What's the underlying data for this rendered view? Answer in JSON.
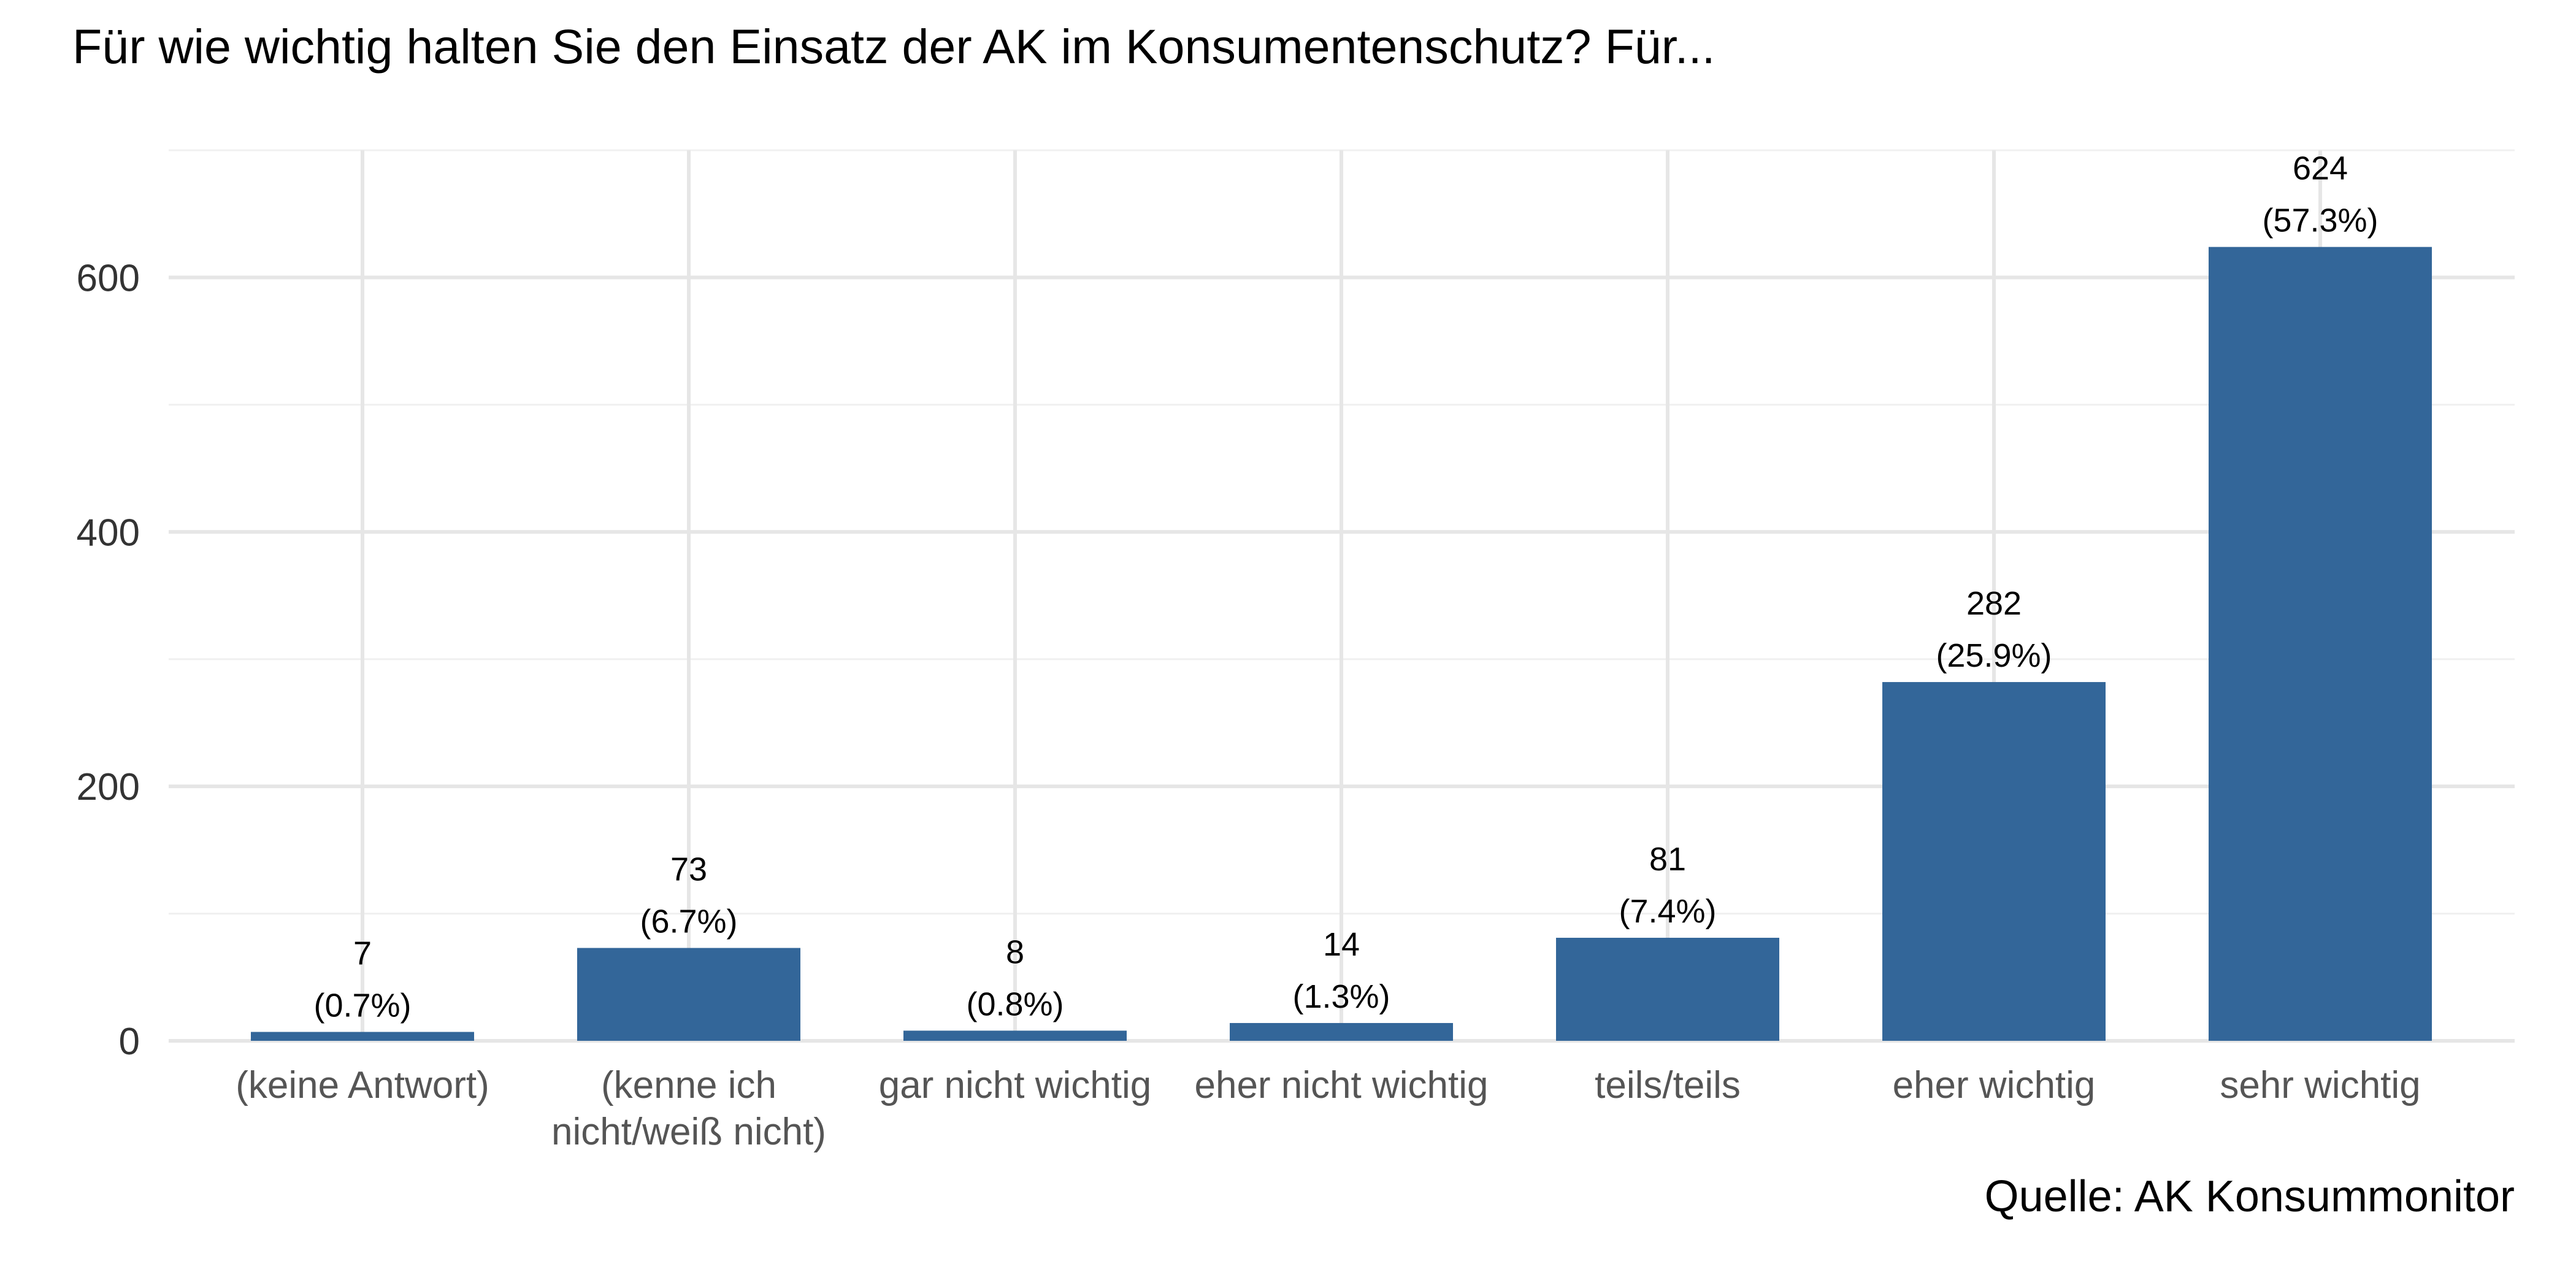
{
  "title": "Für wie wichtig halten Sie den Einsatz der AK im Konsumentenschutz? Für...",
  "caption": "Quelle: AK Konsummonitor",
  "colors": {
    "bar": "#336699",
    "grid_major": "#e6e6e6",
    "grid_minor": "#f0f0f0",
    "background": "#ffffff"
  },
  "chart_data": {
    "type": "bar",
    "title": "Für wie wichtig halten Sie den Einsatz der AK im Konsumentenschutz? Für...",
    "caption": "Quelle: AK Konsummonitor",
    "xlabel": "",
    "ylabel": "",
    "categories": [
      "(keine Antwort)",
      "(kenne ich nicht/weiß nicht)",
      "gar nicht wichtig",
      "eher nicht wichtig",
      "teils/teils",
      "eher wichtig",
      "sehr wichtig"
    ],
    "category_lines": [
      [
        "(keine Antwort)"
      ],
      [
        "(kenne ich",
        "nicht/weiß nicht)"
      ],
      [
        "gar nicht wichtig"
      ],
      [
        "eher nicht wichtig"
      ],
      [
        "teils/teils"
      ],
      [
        "eher wichtig"
      ],
      [
        "sehr wichtig"
      ]
    ],
    "values": [
      7,
      73,
      8,
      14,
      81,
      282,
      624
    ],
    "value_labels": [
      "7",
      "73",
      "8",
      "14",
      "81",
      "282",
      "624"
    ],
    "percent_labels": [
      "(0.7%)",
      "(6.7%)",
      "(0.8%)",
      "(1.3%)",
      "(7.4%)",
      "(25.9%)",
      "(57.3%)"
    ],
    "ylim": [
      0,
      700
    ],
    "y_ticks": [
      0,
      200,
      400,
      600
    ],
    "y_minor_ticks": [
      100,
      300,
      500,
      700
    ],
    "grid": true,
    "legend": "none"
  }
}
